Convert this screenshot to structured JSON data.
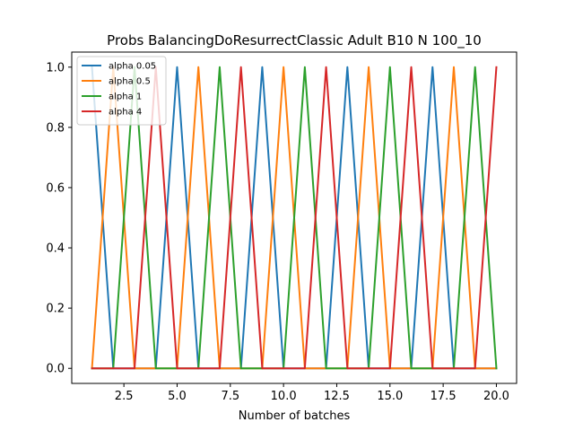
{
  "chart_data": {
    "type": "line",
    "title": "Probs BalancingDoResurrectClassic Adult B10 N 100_10",
    "xlabel": "Number of batches",
    "ylabel": "",
    "xlim": [
      0.05,
      20.95
    ],
    "ylim": [
      -0.05,
      1.05
    ],
    "xticks": [
      2.5,
      5.0,
      7.5,
      10.0,
      12.5,
      15.0,
      17.5,
      20.0
    ],
    "xtick_labels": [
      "2.5",
      "5.0",
      "7.5",
      "10.0",
      "12.5",
      "15.0",
      "17.5",
      "20.0"
    ],
    "yticks": [
      0.0,
      0.2,
      0.4,
      0.6,
      0.8,
      1.0
    ],
    "ytick_labels": [
      "0.0",
      "0.2",
      "0.4",
      "0.6",
      "0.8",
      "1.0"
    ],
    "grid": false,
    "legend_position": "top-left",
    "x": [
      1,
      2,
      3,
      4,
      5,
      6,
      7,
      8,
      9,
      10,
      11,
      12,
      13,
      14,
      15,
      16,
      17,
      18,
      19,
      20
    ],
    "series": [
      {
        "name": "alpha 0.05",
        "color": "#1f77b4",
        "values": [
          1,
          0,
          0,
          0,
          1,
          0,
          0,
          0,
          1,
          0,
          0,
          0,
          1,
          0,
          0,
          0,
          1,
          0,
          0,
          0
        ]
      },
      {
        "name": "alpha 0.5",
        "color": "#ff7f0e",
        "values": [
          0,
          1,
          0,
          0,
          0,
          1,
          0,
          0,
          0,
          1,
          0,
          0,
          0,
          1,
          0,
          0,
          0,
          1,
          0,
          0
        ]
      },
      {
        "name": "alpha 1",
        "color": "#2ca02c",
        "values": [
          0,
          0,
          1,
          0,
          0,
          0,
          1,
          0,
          0,
          0,
          1,
          0,
          0,
          0,
          1,
          0,
          0,
          0,
          1,
          0
        ]
      },
      {
        "name": "alpha 4",
        "color": "#d62728",
        "values": [
          0,
          0,
          0,
          1,
          0,
          0,
          0,
          1,
          0,
          0,
          0,
          1,
          0,
          0,
          0,
          1,
          0,
          0,
          0,
          1
        ]
      }
    ]
  }
}
